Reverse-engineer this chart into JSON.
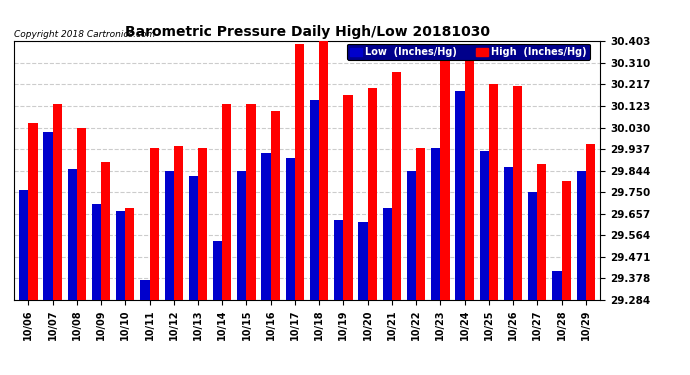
{
  "title": "Barometric Pressure Daily High/Low 20181030",
  "copyright": "Copyright 2018 Cartronics.com",
  "background_color": "#ffffff",
  "plot_bg_color": "#ffffff",
  "grid_color": "#cccccc",
  "bar_width": 0.38,
  "low_color": "#0000cc",
  "high_color": "#ff0000",
  "dates": [
    "10/06",
    "10/07",
    "10/08",
    "10/09",
    "10/10",
    "10/11",
    "10/12",
    "10/13",
    "10/14",
    "10/15",
    "10/16",
    "10/17",
    "10/18",
    "10/19",
    "10/20",
    "10/21",
    "10/22",
    "10/23",
    "10/24",
    "10/25",
    "10/26",
    "10/27",
    "10/28",
    "10/29"
  ],
  "low_values": [
    29.76,
    30.01,
    29.85,
    29.7,
    29.67,
    29.37,
    29.84,
    29.82,
    29.54,
    29.84,
    29.92,
    29.9,
    30.15,
    29.63,
    29.62,
    29.68,
    29.84,
    29.94,
    30.19,
    29.93,
    29.86,
    29.75,
    29.41,
    29.84
  ],
  "high_values": [
    30.05,
    30.13,
    30.03,
    29.88,
    29.68,
    29.94,
    29.95,
    29.94,
    30.13,
    30.13,
    30.1,
    30.39,
    30.403,
    30.17,
    30.2,
    30.27,
    29.94,
    30.34,
    30.36,
    30.22,
    30.21,
    29.87,
    29.8,
    29.96
  ],
  "ylim_min": 29.284,
  "ylim_max": 30.403,
  "yticks": [
    29.284,
    29.378,
    29.471,
    29.564,
    29.657,
    29.75,
    29.844,
    29.937,
    30.03,
    30.123,
    30.217,
    30.31,
    30.403
  ],
  "legend_low_label": "Low  (Inches/Hg)",
  "legend_high_label": "High  (Inches/Hg)"
}
